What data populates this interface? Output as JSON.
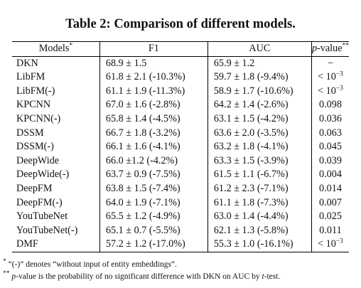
{
  "title": "Table 2: Comparison of different models.",
  "header": {
    "models": "Models",
    "models_mark": "*",
    "f1": "F1",
    "auc": "AUC",
    "pvalue_p": "p",
    "pvalue_rest": "-value",
    "pvalue_mark": "**"
  },
  "rows": [
    {
      "model": "DKN",
      "f1": "68.9 ± 1.5",
      "auc": "65.9 ± 1.2",
      "p": "−",
      "p_exp": ""
    },
    {
      "model": "LibFM",
      "f1": "61.8 ± 2.1 (-10.3%)",
      "auc": "59.7 ± 1.8 (-9.4%)",
      "p": "< 10",
      "p_exp": "−3"
    },
    {
      "model": "LibFM(-)",
      "f1": "61.1 ± 1.9 (-11.3%)",
      "auc": "58.9 ± 1.7 (-10.6%)",
      "p": "< 10",
      "p_exp": "−3"
    },
    {
      "model": "KPCNN",
      "f1": "67.0 ± 1.6 (-2.8%)",
      "auc": "64.2 ± 1.4 (-2.6%)",
      "p": "0.098",
      "p_exp": ""
    },
    {
      "model": "KPCNN(-)",
      "f1": "65.8 ± 1.4 (-4.5%)",
      "auc": "63.1 ± 1.5 (-4.2%)",
      "p": "0.036",
      "p_exp": ""
    },
    {
      "model": "DSSM",
      "f1": "66.7 ± 1.8 (-3.2%)",
      "auc": "63.6 ± 2.0 (-3.5%)",
      "p": "0.063",
      "p_exp": ""
    },
    {
      "model": "DSSM(-)",
      "f1": "66.1 ± 1.6 (-4.1%)",
      "auc": "63.2 ± 1.8 (-4.1%)",
      "p": "0.045",
      "p_exp": ""
    },
    {
      "model": "DeepWide",
      "f1": "66.0 ±1.2 (-4.2%)",
      "auc": "63.3 ± 1.5 (-3.9%)",
      "p": "0.039",
      "p_exp": ""
    },
    {
      "model": "DeepWide(-)",
      "f1": "63.7 ± 0.9 (-7.5%)",
      "auc": "61.5 ± 1.1 (-6.7%)",
      "p": "0.004",
      "p_exp": ""
    },
    {
      "model": "DeepFM",
      "f1": "63.8 ± 1.5 (-7.4%)",
      "auc": "61.2 ± 2.3 (-7.1%)",
      "p": "0.014",
      "p_exp": ""
    },
    {
      "model": "DeepFM(-)",
      "f1": "64.0 ± 1.9 (-7.1%)",
      "auc": "61.1 ± 1.8 (-7.3%)",
      "p": "0.007",
      "p_exp": ""
    },
    {
      "model": "YouTubeNet",
      "f1": "65.5 ± 1.2 (-4.9%)",
      "auc": "63.0 ± 1.4 (-4.4%)",
      "p": "0.025",
      "p_exp": ""
    },
    {
      "model": "YouTubeNet(-)",
      "f1": "65.1 ± 0.7 (-5.5%)",
      "auc": "62.1 ± 1.3 (-5.8%)",
      "p": "0.011",
      "p_exp": ""
    },
    {
      "model": "DMF",
      "f1": "57.2 ± 1.2 (-17.0%)",
      "auc": "55.3 ± 1.0 (-16.1%)",
      "p": "< 10",
      "p_exp": "−3"
    }
  ],
  "notes": {
    "n1_mark": "*",
    "n1_text": " “(-)” denotes “without input of entity embeddings”.",
    "n2_mark": "**",
    "n2_p": "p",
    "n2_mid": "-value is the probability of no significant difference with DKN on AUC by ",
    "n2_t": "t",
    "n2_end": "-test."
  }
}
